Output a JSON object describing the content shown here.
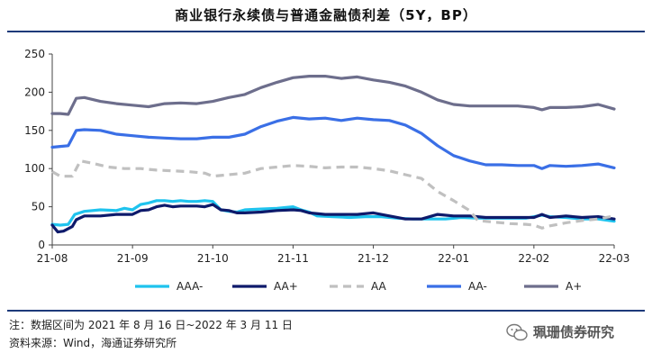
{
  "chart_data": {
    "type": "line",
    "title": "商业银行永续债与普通金融债利差（5Y，BP）",
    "xlabel": "",
    "ylabel": "",
    "ylim": [
      0,
      250
    ],
    "yticks": [
      0,
      50,
      100,
      150,
      200,
      250
    ],
    "x_tick_labels": [
      "21-08",
      "21-09",
      "21-10",
      "21-11",
      "21-12",
      "22-01",
      "22-02",
      "22-03"
    ],
    "x_range": [
      0,
      7
    ],
    "legend_position": "bottom",
    "grid": false,
    "series": [
      {
        "name": "AAA-",
        "color": "#1fc3ee",
        "dash": false,
        "points": [
          [
            0,
            27
          ],
          [
            0.1,
            26
          ],
          [
            0.2,
            27
          ],
          [
            0.28,
            40
          ],
          [
            0.4,
            44
          ],
          [
            0.6,
            46
          ],
          [
            0.8,
            45
          ],
          [
            0.9,
            48
          ],
          [
            1.0,
            46
          ],
          [
            1.1,
            53
          ],
          [
            1.2,
            55
          ],
          [
            1.3,
            58
          ],
          [
            1.4,
            58
          ],
          [
            1.5,
            57
          ],
          [
            1.6,
            58
          ],
          [
            1.7,
            57
          ],
          [
            1.8,
            57
          ],
          [
            1.9,
            58
          ],
          [
            2.0,
            57
          ],
          [
            2.1,
            46
          ],
          [
            2.2,
            44
          ],
          [
            2.3,
            43
          ],
          [
            2.4,
            46
          ],
          [
            2.6,
            47
          ],
          [
            2.8,
            48
          ],
          [
            3.0,
            50
          ],
          [
            3.1,
            46
          ],
          [
            3.2,
            43
          ],
          [
            3.3,
            38
          ],
          [
            3.5,
            37
          ],
          [
            3.7,
            36
          ],
          [
            3.9,
            37
          ],
          [
            4.1,
            37
          ],
          [
            4.3,
            35
          ],
          [
            4.5,
            34
          ],
          [
            4.7,
            34
          ],
          [
            4.9,
            34
          ],
          [
            5.1,
            36
          ],
          [
            5.3,
            35
          ],
          [
            5.5,
            35
          ],
          [
            5.7,
            35
          ],
          [
            5.9,
            35
          ],
          [
            6.1,
            39
          ],
          [
            6.2,
            37
          ],
          [
            6.4,
            36
          ],
          [
            6.6,
            34
          ],
          [
            6.8,
            34
          ],
          [
            7.0,
            31
          ]
        ]
      },
      {
        "name": "AA+",
        "color": "#0e1a6b",
        "dash": false,
        "points": [
          [
            0,
            26
          ],
          [
            0.07,
            17
          ],
          [
            0.14,
            18
          ],
          [
            0.25,
            24
          ],
          [
            0.3,
            33
          ],
          [
            0.4,
            38
          ],
          [
            0.6,
            38
          ],
          [
            0.8,
            40
          ],
          [
            1.0,
            40
          ],
          [
            1.1,
            45
          ],
          [
            1.2,
            46
          ],
          [
            1.3,
            50
          ],
          [
            1.4,
            52
          ],
          [
            1.5,
            50
          ],
          [
            1.6,
            51
          ],
          [
            1.8,
            51
          ],
          [
            1.9,
            50
          ],
          [
            2.0,
            53
          ],
          [
            2.1,
            46
          ],
          [
            2.2,
            45
          ],
          [
            2.3,
            42
          ],
          [
            2.4,
            42
          ],
          [
            2.6,
            43
          ],
          [
            2.8,
            45
          ],
          [
            3.0,
            46
          ],
          [
            3.1,
            45
          ],
          [
            3.2,
            42
          ],
          [
            3.4,
            40
          ],
          [
            3.6,
            40
          ],
          [
            3.8,
            40
          ],
          [
            4.0,
            42
          ],
          [
            4.2,
            38
          ],
          [
            4.4,
            34
          ],
          [
            4.6,
            34
          ],
          [
            4.8,
            40
          ],
          [
            5.0,
            38
          ],
          [
            5.2,
            38
          ],
          [
            5.4,
            36
          ],
          [
            5.6,
            36
          ],
          [
            5.8,
            36
          ],
          [
            6.0,
            36
          ],
          [
            6.1,
            40
          ],
          [
            6.2,
            36
          ],
          [
            6.4,
            38
          ],
          [
            6.6,
            36
          ],
          [
            6.8,
            37
          ],
          [
            7.0,
            34
          ]
        ]
      },
      {
        "name": "AA",
        "color": "#c0c0c0",
        "dash": true,
        "points": [
          [
            0,
            96
          ],
          [
            0.1,
            90
          ],
          [
            0.25,
            90
          ],
          [
            0.35,
            110
          ],
          [
            0.5,
            107
          ],
          [
            0.7,
            102
          ],
          [
            0.9,
            100
          ],
          [
            1.1,
            100
          ],
          [
            1.3,
            98
          ],
          [
            1.5,
            97
          ],
          [
            1.7,
            96
          ],
          [
            1.9,
            94
          ],
          [
            2.0,
            90
          ],
          [
            2.2,
            92
          ],
          [
            2.4,
            94
          ],
          [
            2.6,
            100
          ],
          [
            2.8,
            102
          ],
          [
            3.0,
            104
          ],
          [
            3.2,
            103
          ],
          [
            3.4,
            101
          ],
          [
            3.6,
            102
          ],
          [
            3.8,
            102
          ],
          [
            4.0,
            100
          ],
          [
            4.2,
            97
          ],
          [
            4.4,
            92
          ],
          [
            4.6,
            87
          ],
          [
            4.8,
            70
          ],
          [
            5.0,
            58
          ],
          [
            5.2,
            45
          ],
          [
            5.3,
            32
          ],
          [
            5.5,
            30
          ],
          [
            5.7,
            28
          ],
          [
            5.9,
            27
          ],
          [
            6.0,
            26
          ],
          [
            6.1,
            22
          ],
          [
            6.2,
            25
          ],
          [
            6.4,
            29
          ],
          [
            6.6,
            32
          ],
          [
            6.8,
            34
          ],
          [
            7.0,
            38
          ]
        ]
      },
      {
        "name": "AA-",
        "color": "#3a6fe6",
        "dash": false,
        "points": [
          [
            0,
            128
          ],
          [
            0.1,
            129
          ],
          [
            0.2,
            130
          ],
          [
            0.3,
            150
          ],
          [
            0.4,
            151
          ],
          [
            0.6,
            150
          ],
          [
            0.8,
            145
          ],
          [
            1.0,
            143
          ],
          [
            1.2,
            141
          ],
          [
            1.4,
            140
          ],
          [
            1.6,
            139
          ],
          [
            1.8,
            139
          ],
          [
            2.0,
            141
          ],
          [
            2.2,
            141
          ],
          [
            2.4,
            145
          ],
          [
            2.6,
            155
          ],
          [
            2.8,
            162
          ],
          [
            3.0,
            167
          ],
          [
            3.2,
            165
          ],
          [
            3.4,
            166
          ],
          [
            3.6,
            163
          ],
          [
            3.8,
            166
          ],
          [
            4.0,
            164
          ],
          [
            4.2,
            163
          ],
          [
            4.4,
            157
          ],
          [
            4.6,
            146
          ],
          [
            4.8,
            130
          ],
          [
            5.0,
            117
          ],
          [
            5.2,
            110
          ],
          [
            5.4,
            105
          ],
          [
            5.6,
            105
          ],
          [
            5.8,
            104
          ],
          [
            6.0,
            104
          ],
          [
            6.1,
            100
          ],
          [
            6.2,
            104
          ],
          [
            6.4,
            103
          ],
          [
            6.6,
            104
          ],
          [
            6.8,
            106
          ],
          [
            7.0,
            101
          ]
        ]
      },
      {
        "name": "A+",
        "color": "#6d6e8c",
        "dash": false,
        "points": [
          [
            0,
            172
          ],
          [
            0.1,
            172
          ],
          [
            0.2,
            171
          ],
          [
            0.3,
            192
          ],
          [
            0.4,
            193
          ],
          [
            0.6,
            188
          ],
          [
            0.8,
            185
          ],
          [
            1.0,
            183
          ],
          [
            1.2,
            181
          ],
          [
            1.4,
            185
          ],
          [
            1.6,
            186
          ],
          [
            1.8,
            185
          ],
          [
            2.0,
            188
          ],
          [
            2.2,
            193
          ],
          [
            2.4,
            197
          ],
          [
            2.6,
            206
          ],
          [
            2.8,
            213
          ],
          [
            3.0,
            219
          ],
          [
            3.2,
            221
          ],
          [
            3.4,
            221
          ],
          [
            3.6,
            218
          ],
          [
            3.8,
            220
          ],
          [
            4.0,
            216
          ],
          [
            4.2,
            213
          ],
          [
            4.4,
            208
          ],
          [
            4.6,
            200
          ],
          [
            4.8,
            190
          ],
          [
            5.0,
            184
          ],
          [
            5.2,
            182
          ],
          [
            5.4,
            182
          ],
          [
            5.6,
            182
          ],
          [
            5.8,
            182
          ],
          [
            6.0,
            180
          ],
          [
            6.1,
            177
          ],
          [
            6.2,
            180
          ],
          [
            6.4,
            180
          ],
          [
            6.6,
            181
          ],
          [
            6.8,
            184
          ],
          [
            7.0,
            178
          ]
        ]
      }
    ]
  },
  "notes": {
    "note1": "注：数据区间为 2021 年 8 月 16 日~2022 年 3 月 11 日",
    "note2": "资料来源：Wind，海通证券研究所"
  },
  "watermark": {
    "text": "珮珊债券研究",
    "icon": "wechat-icon"
  }
}
